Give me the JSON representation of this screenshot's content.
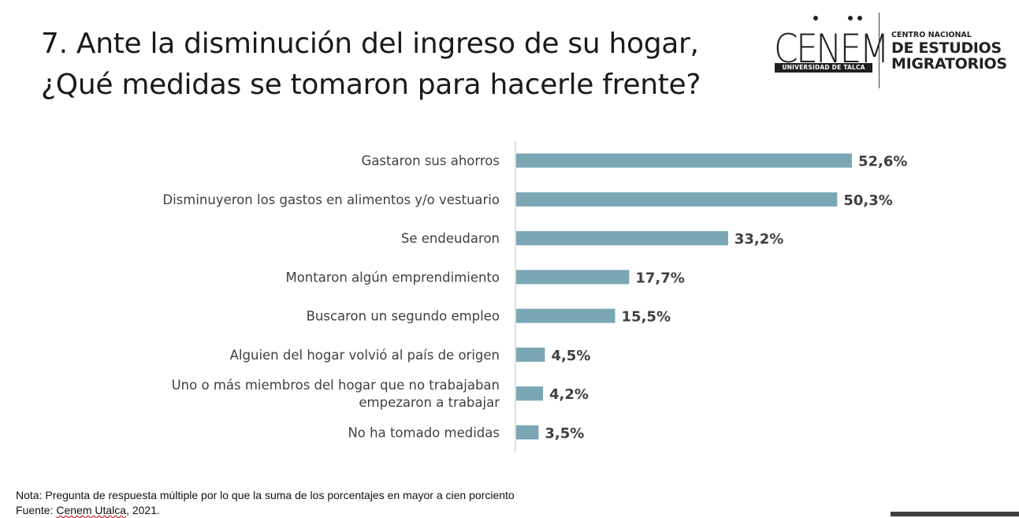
{
  "title": {
    "line1": "7. Ante la disminución del ingreso de su hogar,",
    "line2": "¿Qué medidas se tomaron para hacerle frente?"
  },
  "logo": {
    "mark": "CENEM",
    "mark_sub": "UNIVERSIDAD DE TALCA",
    "line1": "CENTRO NACIONAL",
    "line2": "DE ESTUDIOS",
    "line3": "MIGRATORIOS"
  },
  "chart_data": {
    "type": "bar",
    "orientation": "horizontal",
    "categories": [
      [
        "Gastaron sus ahorros"
      ],
      [
        "Disminuyeron los gastos en alimentos y/o vestuario"
      ],
      [
        "Se endeudaron"
      ],
      [
        "Montaron algún emprendimiento"
      ],
      [
        "Buscaron un segundo empleo"
      ],
      [
        "Alguien del hogar volvió al país de origen"
      ],
      [
        "Uno o más miembros del hogar que no trabajaban",
        "empezaron a trabajar"
      ],
      [
        "No ha tomado medidas"
      ]
    ],
    "values": [
      52.6,
      50.3,
      33.2,
      17.7,
      15.5,
      4.5,
      4.2,
      3.5
    ],
    "value_labels": [
      "52,6%",
      "50,3%",
      "33,2%",
      "17,7%",
      "15,5%",
      "4,5%",
      "4,2%",
      "3,5%"
    ],
    "bar_color": "#7ba7b5",
    "axis_color": "#bfbfbf",
    "xlim": [
      0,
      60
    ],
    "title": "",
    "xlabel": "",
    "ylabel": "",
    "grid": false,
    "legend": "none"
  },
  "footer": {
    "note": "Nota: Pregunta de respuesta múltiple por lo que la suma de los porcentajes en mayor a cien porciento",
    "source_prefix": "Fuente: ",
    "source_link": "Cenem Utalca",
    "source_suffix": ", 2021."
  }
}
